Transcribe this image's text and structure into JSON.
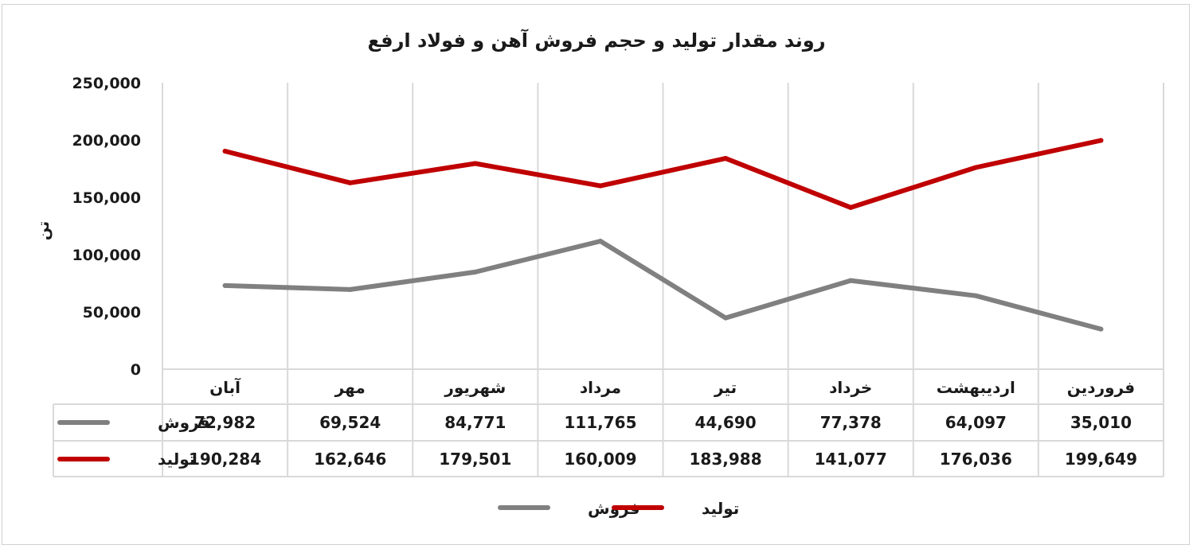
{
  "chart_data": {
    "type": "line",
    "title": "روند مقدار تولید و حجم فروش آهن و فولاد ارفع",
    "xlabel": "",
    "ylabel": "تن",
    "ylim": [
      0,
      250000
    ],
    "yticks": [
      0,
      50000,
      100000,
      150000,
      200000,
      250000
    ],
    "ytick_labels": [
      "0",
      "50,000",
      "100,000",
      "150,000",
      "200,000",
      "250,000"
    ],
    "categories": [
      "فروردین",
      "اردیبهشت",
      "خرداد",
      "تیر",
      "مرداد",
      "شهریور",
      "مهر",
      "آبان"
    ],
    "series": [
      {
        "name": "فروش",
        "color": "#808080",
        "values": [
          35010,
          64097,
          77378,
          44690,
          111765,
          84771,
          69524,
          72982
        ],
        "value_labels": [
          "35,010",
          "64,097",
          "77,378",
          "44,690",
          "111,765",
          "84,771",
          "69,524",
          "72,982"
        ]
      },
      {
        "name": "تولید",
        "color": "#c00000",
        "values": [
          199649,
          176036,
          141077,
          183988,
          160009,
          179501,
          162646,
          190284
        ],
        "value_labels": [
          "199,649",
          "176,036",
          "141,077",
          "183,988",
          "160,009",
          "179,501",
          "162,646",
          "190,284"
        ]
      }
    ],
    "grid": {
      "vertical": true,
      "horizontal": false
    },
    "data_table": true,
    "legend": {
      "position": "bottom",
      "order": [
        "فروش",
        "تولید"
      ]
    }
  }
}
